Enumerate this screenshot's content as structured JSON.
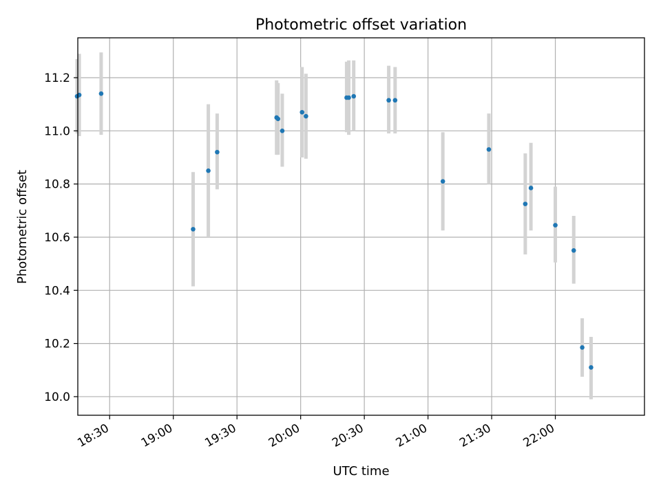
{
  "chart_data": {
    "type": "scatter",
    "title": "Photometric offset variation",
    "xlabel": "UTC time",
    "ylabel": "Photometric offset",
    "x_axis_kind": "time",
    "xlim": [
      "18:15",
      "22:42"
    ],
    "ylim": [
      9.93,
      11.35
    ],
    "x_ticks": [
      "18:30",
      "19:00",
      "19:30",
      "20:00",
      "20:30",
      "21:00",
      "21:30",
      "22:00"
    ],
    "y_ticks": [
      10.0,
      10.2,
      10.4,
      10.6,
      10.8,
      11.0,
      11.2
    ],
    "grid": true,
    "series": [
      {
        "marker_color": "#1f77b4",
        "errorbar_color": "#d3d3d3",
        "points": [
          {
            "x": "18:14:40",
            "y": 11.13,
            "ylow": 10.99,
            "yhigh": 11.27
          },
          {
            "x": "18:15:40",
            "y": 11.135,
            "ylow": 10.98,
            "yhigh": 11.29
          },
          {
            "x": "18:26:00",
            "y": 11.14,
            "ylow": 10.985,
            "yhigh": 11.295
          },
          {
            "x": "19:09:20",
            "y": 10.63,
            "ylow": 10.415,
            "yhigh": 10.845
          },
          {
            "x": "19:16:30",
            "y": 10.85,
            "ylow": 10.6,
            "yhigh": 11.1
          },
          {
            "x": "19:20:40",
            "y": 10.92,
            "ylow": 10.78,
            "yhigh": 11.065
          },
          {
            "x": "19:48:40",
            "y": 11.05,
            "ylow": 10.91,
            "yhigh": 11.19
          },
          {
            "x": "19:49:20",
            "y": 11.045,
            "ylow": 10.91,
            "yhigh": 11.18
          },
          {
            "x": "19:51:20",
            "y": 11.0,
            "ylow": 10.865,
            "yhigh": 11.14
          },
          {
            "x": "20:00:40",
            "y": 11.07,
            "ylow": 10.9,
            "yhigh": 11.24
          },
          {
            "x": "20:02:30",
            "y": 11.055,
            "ylow": 10.895,
            "yhigh": 11.215
          },
          {
            "x": "20:21:40",
            "y": 11.125,
            "ylow": 10.995,
            "yhigh": 11.26
          },
          {
            "x": "20:22:40",
            "y": 11.125,
            "ylow": 10.985,
            "yhigh": 11.265
          },
          {
            "x": "20:25:00",
            "y": 11.13,
            "ylow": 11.0,
            "yhigh": 11.265
          },
          {
            "x": "20:41:30",
            "y": 11.115,
            "ylow": 10.99,
            "yhigh": 11.245
          },
          {
            "x": "20:44:30",
            "y": 11.115,
            "ylow": 10.99,
            "yhigh": 11.24
          },
          {
            "x": "21:07:00",
            "y": 10.81,
            "ylow": 10.625,
            "yhigh": 10.995
          },
          {
            "x": "21:28:40",
            "y": 10.93,
            "ylow": 10.8,
            "yhigh": 11.065
          },
          {
            "x": "21:45:50",
            "y": 10.725,
            "ylow": 10.535,
            "yhigh": 10.915
          },
          {
            "x": "21:48:30",
            "y": 10.785,
            "ylow": 10.625,
            "yhigh": 10.955
          },
          {
            "x": "22:00:00",
            "y": 10.645,
            "ylow": 10.505,
            "yhigh": 10.79
          },
          {
            "x": "22:08:40",
            "y": 10.55,
            "ylow": 10.425,
            "yhigh": 10.68
          },
          {
            "x": "22:12:40",
            "y": 10.185,
            "ylow": 10.075,
            "yhigh": 10.295
          },
          {
            "x": "22:16:50",
            "y": 10.11,
            "ylow": 9.99,
            "yhigh": 10.225
          }
        ]
      }
    ]
  }
}
